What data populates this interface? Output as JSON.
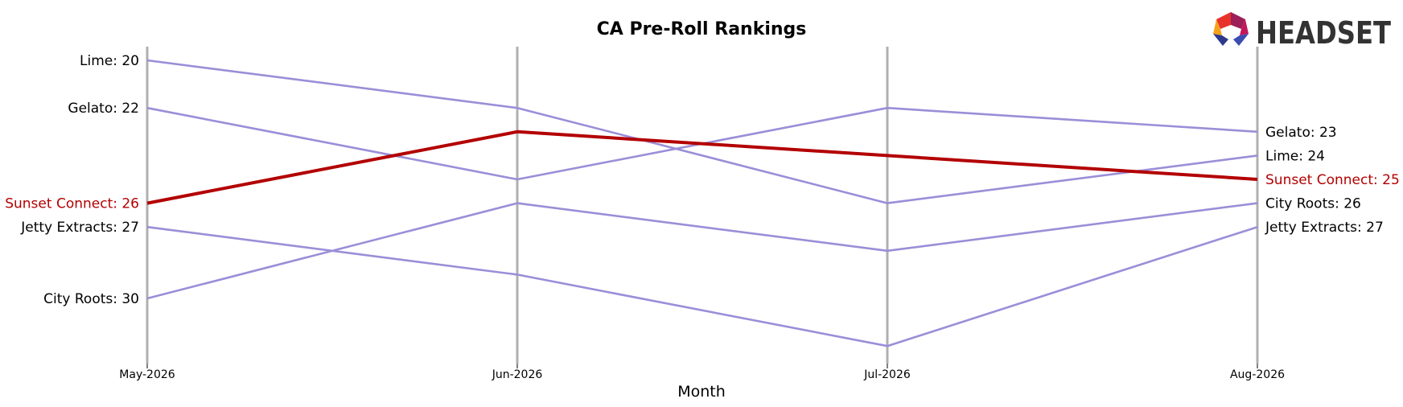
{
  "chart_data": {
    "type": "line",
    "title": "CA Pre-Roll Rankings",
    "xlabel": "Month",
    "ylabel": "",
    "categories": [
      "May-2026",
      "Jun-2026",
      "Jul-2026",
      "Aug-2026"
    ],
    "y_axis": {
      "inverted": true,
      "ylim": [
        19.4,
        32.5
      ],
      "visible": false
    },
    "grid": false,
    "legend": "none",
    "highlight_color": "#b30000",
    "default_color": "#9b8ed8",
    "series": [
      {
        "name": "Lime",
        "values": [
          20,
          22,
          26,
          24
        ],
        "highlight": false
      },
      {
        "name": "Gelato",
        "values": [
          22,
          25,
          22,
          23
        ],
        "highlight": false
      },
      {
        "name": "Sunset Connect",
        "values": [
          26,
          23,
          24,
          25
        ],
        "highlight": true
      },
      {
        "name": "Jetty Extracts",
        "values": [
          27,
          29,
          32,
          27
        ],
        "highlight": false
      },
      {
        "name": "City Roots",
        "values": [
          30,
          26,
          28,
          26
        ],
        "highlight": false
      }
    ],
    "left_labels": [
      {
        "text": "Lime: 20",
        "series": "Lime"
      },
      {
        "text": "Gelato: 22",
        "series": "Gelato"
      },
      {
        "text": "Sunset Connect: 26",
        "series": "Sunset Connect"
      },
      {
        "text": "Jetty Extracts: 27",
        "series": "Jetty Extracts"
      },
      {
        "text": "City Roots: 30",
        "series": "City Roots"
      }
    ],
    "right_labels": [
      {
        "text": "Gelato: 23",
        "series": "Gelato"
      },
      {
        "text": "Lime: 24",
        "series": "Lime"
      },
      {
        "text": "Sunset Connect: 25",
        "series": "Sunset Connect"
      },
      {
        "text": "City Roots: 26",
        "series": "City Roots"
      },
      {
        "text": "Jetty Extracts: 27",
        "series": "Jetty Extracts"
      }
    ]
  },
  "logo": {
    "text": "HEADSET",
    "colors": [
      "#e8332a",
      "#f7a21b",
      "#2d3a8c",
      "#3b4db0",
      "#9c1f5a",
      "#c2185b"
    ]
  }
}
